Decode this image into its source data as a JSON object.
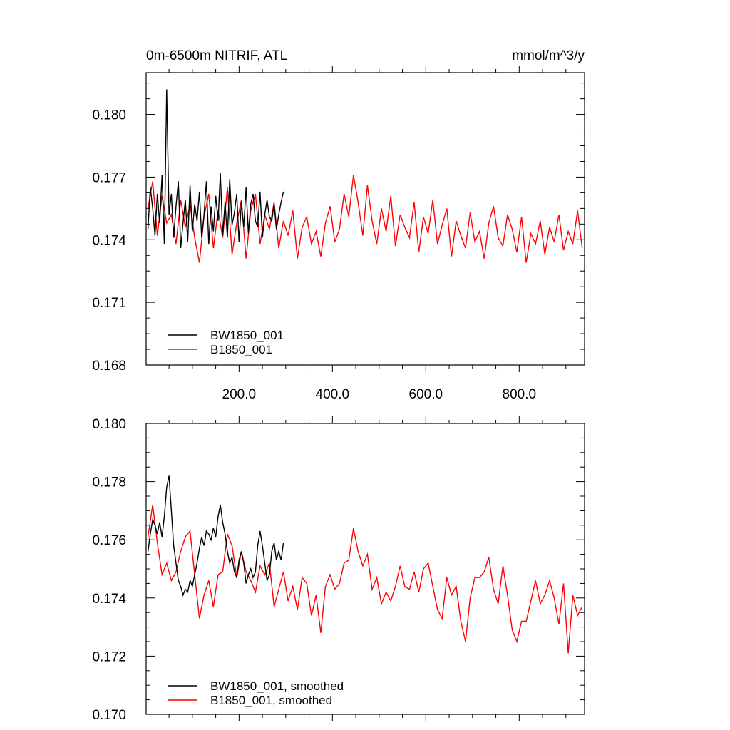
{
  "chart_data": [
    {
      "type": "line",
      "title": "0m-6500m NITRIF, ATL",
      "units": "mmol/m^3/y",
      "xlabel": "",
      "ylabel": "",
      "xlim": [
        1,
        940
      ],
      "ylim": [
        0.168,
        0.182
      ],
      "xticks": [
        200,
        400,
        600,
        800
      ],
      "xtick_labels": [
        "200.0",
        "400.0",
        "600.0",
        "800.0"
      ],
      "yticks": [
        0.168,
        0.171,
        0.174,
        0.177,
        0.18
      ],
      "ytick_labels": [
        "0.168",
        "0.171",
        "0.174",
        "0.177",
        "0.180"
      ],
      "legend_position": "bottom-left",
      "series": [
        {
          "name": "BW1850_001",
          "color": "#000000",
          "x": [
            5,
            10,
            15,
            20,
            25,
            30,
            35,
            40,
            45,
            50,
            55,
            60,
            65,
            70,
            75,
            80,
            85,
            90,
            95,
            100,
            105,
            110,
            115,
            120,
            125,
            130,
            135,
            140,
            145,
            150,
            155,
            160,
            165,
            170,
            175,
            180,
            185,
            190,
            195,
            200,
            205,
            210,
            215,
            220,
            225,
            230,
            235,
            240,
            245,
            250,
            255,
            260,
            265,
            270,
            275,
            280,
            285,
            290,
            295
          ],
          "values": [
            0.1745,
            0.1765,
            0.1755,
            0.1742,
            0.1762,
            0.1748,
            0.1771,
            0.1738,
            0.1812,
            0.1752,
            0.1762,
            0.1741,
            0.1756,
            0.1768,
            0.1736,
            0.1748,
            0.1759,
            0.1739,
            0.1766,
            0.1744,
            0.1757,
            0.1749,
            0.1763,
            0.1741,
            0.1752,
            0.1768,
            0.1738,
            0.1756,
            0.1744,
            0.1761,
            0.1749,
            0.1772,
            0.1742,
            0.1758,
            0.1741,
            0.1769,
            0.1747,
            0.1753,
            0.1762,
            0.1739,
            0.1758,
            0.1746,
            0.1765,
            0.1743,
            0.1757,
            0.1762,
            0.1749,
            0.1746,
            0.1763,
            0.1741,
            0.1752,
            0.1759,
            0.1751,
            0.1749,
            0.1757,
            0.1745,
            0.1752,
            0.1758,
            0.1763
          ]
        },
        {
          "name": "B1850_001",
          "color": "#ff0000",
          "x": [
            5,
            15,
            25,
            35,
            45,
            55,
            65,
            75,
            85,
            95,
            105,
            115,
            125,
            135,
            145,
            155,
            165,
            175,
            185,
            195,
            205,
            215,
            225,
            235,
            245,
            255,
            265,
            275,
            285,
            295,
            305,
            315,
            325,
            335,
            345,
            355,
            365,
            375,
            385,
            395,
            405,
            415,
            425,
            435,
            445,
            455,
            465,
            475,
            485,
            495,
            505,
            515,
            525,
            535,
            545,
            555,
            565,
            575,
            585,
            595,
            605,
            615,
            625,
            635,
            645,
            655,
            665,
            675,
            685,
            695,
            705,
            715,
            725,
            735,
            745,
            755,
            765,
            775,
            785,
            795,
            805,
            815,
            825,
            835,
            845,
            855,
            865,
            875,
            885,
            895,
            905,
            915,
            925,
            935
          ],
          "values": [
            0.1755,
            0.1768,
            0.1742,
            0.1761,
            0.1748,
            0.1752,
            0.1738,
            0.1759,
            0.1746,
            0.1757,
            0.1741,
            0.1729,
            0.1751,
            0.1762,
            0.1736,
            0.1754,
            0.1741,
            0.1765,
            0.1733,
            0.1748,
            0.1759,
            0.1731,
            0.1754,
            0.1762,
            0.1738,
            0.1752,
            0.1745,
            0.1758,
            0.1736,
            0.1749,
            0.1742,
            0.1754,
            0.1731,
            0.1746,
            0.1751,
            0.1738,
            0.1744,
            0.1732,
            0.1748,
            0.1756,
            0.1739,
            0.1745,
            0.1762,
            0.1751,
            0.1771,
            0.1758,
            0.1742,
            0.1766,
            0.1749,
            0.1738,
            0.1755,
            0.1744,
            0.1761,
            0.1737,
            0.1752,
            0.1746,
            0.1741,
            0.1758,
            0.1734,
            0.1751,
            0.1743,
            0.1759,
            0.1738,
            0.1747,
            0.1755,
            0.1732,
            0.1749,
            0.1742,
            0.1736,
            0.1753,
            0.1739,
            0.1744,
            0.1731,
            0.1748,
            0.1756,
            0.1741,
            0.1737,
            0.1752,
            0.1745,
            0.1734,
            0.1751,
            0.1729,
            0.1743,
            0.1738,
            0.1749,
            0.1733,
            0.1746,
            0.1739,
            0.1752,
            0.1735,
            0.1744,
            0.1738,
            0.1754,
            0.1736
          ]
        }
      ]
    },
    {
      "type": "line",
      "title": "",
      "xlabel": "",
      "ylabel": "",
      "xlim": [
        1,
        940
      ],
      "ylim": [
        0.17,
        0.18
      ],
      "yticks": [
        0.17,
        0.172,
        0.174,
        0.176,
        0.178,
        0.18
      ],
      "ytick_labels": [
        "0.170",
        "0.172",
        "0.174",
        "0.176",
        "0.178",
        "0.180"
      ],
      "legend_position": "bottom-left",
      "series": [
        {
          "name": "BW1850_001, smoothed",
          "color": "#000000",
          "x": [
            5,
            10,
            15,
            20,
            25,
            30,
            35,
            40,
            45,
            50,
            55,
            60,
            65,
            70,
            75,
            80,
            85,
            90,
            95,
            100,
            105,
            110,
            115,
            120,
            125,
            130,
            135,
            140,
            145,
            150,
            155,
            160,
            165,
            170,
            175,
            180,
            185,
            190,
            195,
            200,
            205,
            210,
            215,
            220,
            225,
            230,
            235,
            240,
            245,
            250,
            255,
            260,
            265,
            270,
            275,
            280,
            285,
            290,
            295
          ],
          "values": [
            0.1756,
            0.1762,
            0.1767,
            0.1765,
            0.1762,
            0.1766,
            0.1761,
            0.1768,
            0.1778,
            0.1782,
            0.177,
            0.1758,
            0.1752,
            0.1746,
            0.1744,
            0.1741,
            0.1743,
            0.1742,
            0.1746,
            0.1744,
            0.1748,
            0.1752,
            0.1757,
            0.1761,
            0.1758,
            0.1763,
            0.1762,
            0.176,
            0.1764,
            0.1761,
            0.1768,
            0.1772,
            0.1766,
            0.1762,
            0.1756,
            0.1752,
            0.1754,
            0.1749,
            0.1747,
            0.1753,
            0.1756,
            0.1752,
            0.1745,
            0.1748,
            0.175,
            0.1747,
            0.1749,
            0.1758,
            0.1763,
            0.1758,
            0.1752,
            0.1746,
            0.1748,
            0.1756,
            0.1759,
            0.1753,
            0.1756,
            0.1753,
            0.1759
          ]
        },
        {
          "name": "B1850_001, smoothed",
          "color": "#ff0000",
          "x": [
            5,
            15,
            25,
            35,
            45,
            55,
            65,
            75,
            85,
            95,
            105,
            115,
            125,
            135,
            145,
            155,
            165,
            175,
            185,
            195,
            205,
            215,
            225,
            235,
            245,
            255,
            265,
            275,
            285,
            295,
            305,
            315,
            325,
            335,
            345,
            355,
            365,
            375,
            385,
            395,
            405,
            415,
            425,
            435,
            445,
            455,
            465,
            475,
            485,
            495,
            505,
            515,
            525,
            535,
            545,
            555,
            565,
            575,
            585,
            595,
            605,
            615,
            625,
            635,
            645,
            655,
            665,
            675,
            685,
            695,
            705,
            715,
            725,
            735,
            745,
            755,
            765,
            775,
            785,
            795,
            805,
            815,
            825,
            835,
            845,
            855,
            865,
            875,
            885,
            895,
            905,
            915,
            925,
            935
          ],
          "values": [
            0.1761,
            0.1772,
            0.1759,
            0.1748,
            0.1752,
            0.1746,
            0.1749,
            0.1756,
            0.1761,
            0.1763,
            0.1748,
            0.1733,
            0.1741,
            0.1746,
            0.1737,
            0.1748,
            0.1749,
            0.1762,
            0.1758,
            0.1747,
            0.1756,
            0.1749,
            0.1746,
            0.1742,
            0.1751,
            0.1748,
            0.1752,
            0.1737,
            0.1743,
            0.1749,
            0.1739,
            0.1744,
            0.1736,
            0.1747,
            0.1745,
            0.1734,
            0.1741,
            0.1728,
            0.1744,
            0.1748,
            0.1743,
            0.1745,
            0.1752,
            0.1753,
            0.1764,
            0.1756,
            0.1751,
            0.1755,
            0.1743,
            0.1747,
            0.1738,
            0.1742,
            0.1739,
            0.1744,
            0.1751,
            0.1744,
            0.1743,
            0.1749,
            0.1742,
            0.175,
            0.1752,
            0.1744,
            0.1736,
            0.1733,
            0.1747,
            0.1741,
            0.1744,
            0.1732,
            0.1725,
            0.174,
            0.1747,
            0.1747,
            0.1749,
            0.1754,
            0.1743,
            0.1738,
            0.1751,
            0.1741,
            0.1729,
            0.1725,
            0.1732,
            0.1732,
            0.1739,
            0.1746,
            0.1738,
            0.1741,
            0.1746,
            0.174,
            0.1731,
            0.1745,
            0.1721,
            0.1741,
            0.1734,
            0.1737
          ]
        }
      ]
    }
  ]
}
